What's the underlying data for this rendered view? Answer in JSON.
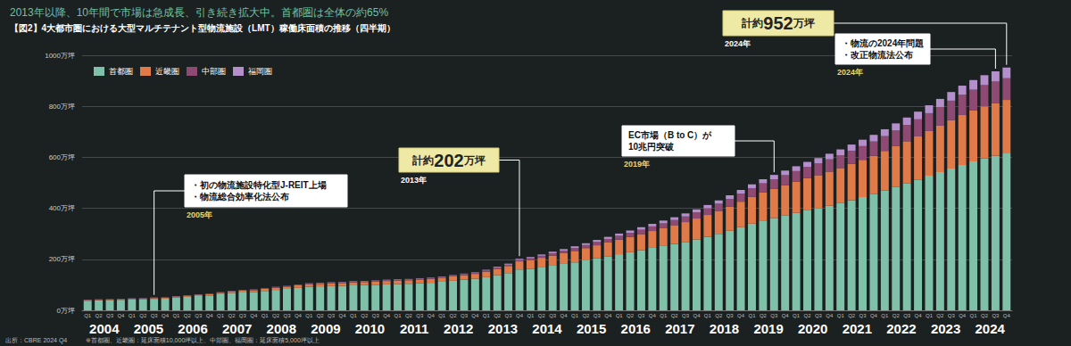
{
  "chart_data": {
    "type": "bar",
    "stacked": true,
    "subtitle": "2013年以降、10年間で市場は急成長、引き続き拡大中。首都圏は全体の約65%",
    "title": "【図2】4大都市圏における大型マルチテナント型物流施設（LMT）稼働床面積の推移（四半期）",
    "source": "出所：CBRE 2024 Q4",
    "note": "※首都圏、近畿圏：延床面積10,000坪以上、中部圏、福岡圏：延床面積5,000坪以上",
    "categories": [
      "Q1",
      "Q2",
      "Q3",
      "Q4",
      "Q1",
      "Q2",
      "Q3",
      "Q4",
      "Q1",
      "Q2",
      "Q3",
      "Q4",
      "Q1",
      "Q2",
      "Q3",
      "Q4",
      "Q1",
      "Q2",
      "Q3",
      "Q4",
      "Q1",
      "Q2",
      "Q3",
      "Q4",
      "Q1",
      "Q2",
      "Q3",
      "Q4",
      "Q1",
      "Q2",
      "Q3",
      "Q4",
      "Q1",
      "Q2",
      "Q3",
      "Q4",
      "Q1",
      "Q2",
      "Q3",
      "Q4",
      "Q1",
      "Q2",
      "Q3",
      "Q4",
      "Q1",
      "Q2",
      "Q3",
      "Q4",
      "Q1",
      "Q2",
      "Q3",
      "Q4",
      "Q1",
      "Q2",
      "Q3",
      "Q4",
      "Q1",
      "Q2",
      "Q3",
      "Q4",
      "Q1",
      "Q2",
      "Q3",
      "Q4",
      "Q1",
      "Q2",
      "Q3",
      "Q4",
      "Q1",
      "Q2",
      "Q3",
      "Q4",
      "Q1",
      "Q2",
      "Q3",
      "Q4",
      "Q1",
      "Q2",
      "Q3",
      "Q4",
      "Q1",
      "Q2",
      "Q3",
      "Q4"
    ],
    "years": [
      "2004",
      "2005",
      "2006",
      "2007",
      "2008",
      "2009",
      "2010",
      "2011",
      "2012",
      "2013",
      "2014",
      "2015",
      "2016",
      "2017",
      "2018",
      "2019",
      "2020",
      "2021",
      "2022",
      "2023",
      "2024"
    ],
    "series": [
      {
        "name": "首都圏",
        "color": "#7fc1a8",
        "values": [
          38,
          39,
          40,
          41,
          42,
          43,
          45,
          46,
          50,
          53,
          56,
          58,
          63,
          68,
          70,
          72,
          76,
          80,
          84,
          88,
          92,
          94,
          95,
          96,
          98,
          99,
          100,
          102,
          103,
          104,
          106,
          108,
          112,
          116,
          120,
          124,
          130,
          138,
          146,
          160,
          162,
          168,
          175,
          182,
          188,
          196,
          204,
          212,
          220,
          228,
          236,
          245,
          252,
          260,
          268,
          278,
          288,
          300,
          312,
          326,
          340,
          352,
          362,
          372,
          382,
          392,
          400,
          410,
          420,
          432,
          444,
          456,
          470,
          484,
          498,
          512,
          528,
          542,
          556,
          570,
          584,
          596,
          606,
          615
        ]
      },
      {
        "name": "近畿圏",
        "color": "#e07a48",
        "values": [
          2,
          2,
          2,
          2,
          3,
          3,
          3,
          3,
          4,
          4,
          5,
          5,
          6,
          6,
          7,
          7,
          8,
          9,
          9,
          10,
          10,
          10,
          11,
          11,
          12,
          12,
          13,
          13,
          14,
          14,
          15,
          15,
          16,
          17,
          18,
          19,
          22,
          25,
          28,
          32,
          35,
          38,
          40,
          42,
          45,
          48,
          51,
          54,
          57,
          60,
          63,
          66,
          70,
          74,
          78,
          82,
          86,
          90,
          95,
          100,
          105,
          110,
          114,
          118,
          122,
          126,
          130,
          134,
          138,
          142,
          146,
          150,
          155,
          160,
          165,
          170,
          175,
          182,
          190,
          196,
          200,
          204,
          207,
          210
        ]
      },
      {
        "name": "中部圏",
        "color": "#8e4a72",
        "values": [
          1,
          1,
          1,
          1,
          1,
          1,
          1,
          1,
          1,
          1,
          1,
          1,
          1,
          1,
          2,
          2,
          2,
          2,
          2,
          2,
          2,
          2,
          2,
          2,
          2,
          2,
          2,
          3,
          3,
          3,
          3,
          3,
          3,
          3,
          4,
          4,
          4,
          5,
          5,
          6,
          7,
          8,
          9,
          10,
          11,
          12,
          13,
          14,
          15,
          16,
          17,
          18,
          19,
          20,
          22,
          24,
          26,
          28,
          30,
          32,
          34,
          36,
          38,
          40,
          42,
          44,
          46,
          48,
          50,
          52,
          54,
          56,
          58,
          61,
          64,
          67,
          70,
          73,
          76,
          79,
          81,
          83,
          84,
          85
        ]
      },
      {
        "name": "福岡圏",
        "color": "#b48fcc",
        "values": [
          1,
          1,
          1,
          1,
          1,
          1,
          1,
          1,
          1,
          1,
          1,
          1,
          1,
          1,
          1,
          1,
          1,
          1,
          1,
          1,
          2,
          2,
          2,
          2,
          2,
          2,
          2,
          2,
          2,
          2,
          2,
          2,
          2,
          2,
          2,
          2,
          3,
          3,
          4,
          4,
          5,
          5,
          6,
          6,
          7,
          7,
          8,
          8,
          9,
          9,
          10,
          10,
          11,
          11,
          12,
          12,
          13,
          13,
          14,
          14,
          15,
          16,
          17,
          18,
          19,
          20,
          21,
          22,
          23,
          24,
          25,
          26,
          27,
          28,
          29,
          30,
          31,
          32,
          34,
          36,
          38,
          39,
          40,
          42
        ]
      }
    ],
    "ylim": [
      0,
      1000
    ],
    "yticks": [
      {
        "value": 0,
        "label": "0万坪"
      },
      {
        "value": 200,
        "label": "200万坪"
      },
      {
        "value": 400,
        "label": "400万坪"
      },
      {
        "value": 600,
        "label": "600万坪"
      },
      {
        "value": 800,
        "label": "800万坪"
      },
      {
        "value": 1000,
        "label": "1000万坪"
      }
    ],
    "grid": true,
    "legend": "upper left",
    "annotations": [
      {
        "year": "2005年",
        "lines": [
          "・初の物流施設特化型J-REIT上場",
          "・物流総合効率化法公布"
        ]
      },
      {
        "year": "2013年",
        "prefix": "計約",
        "value": 202,
        "suffix": "万坪"
      },
      {
        "year": "2019年",
        "lines": [
          "EC市場（B to C）が",
          "10兆円突破"
        ]
      },
      {
        "year": "2024年",
        "prefix": "計約",
        "value": 952,
        "suffix": "万坪"
      },
      {
        "year": "2024年",
        "lines": [
          "・物流の2024年問題",
          "・改正物流法公布"
        ]
      }
    ]
  }
}
